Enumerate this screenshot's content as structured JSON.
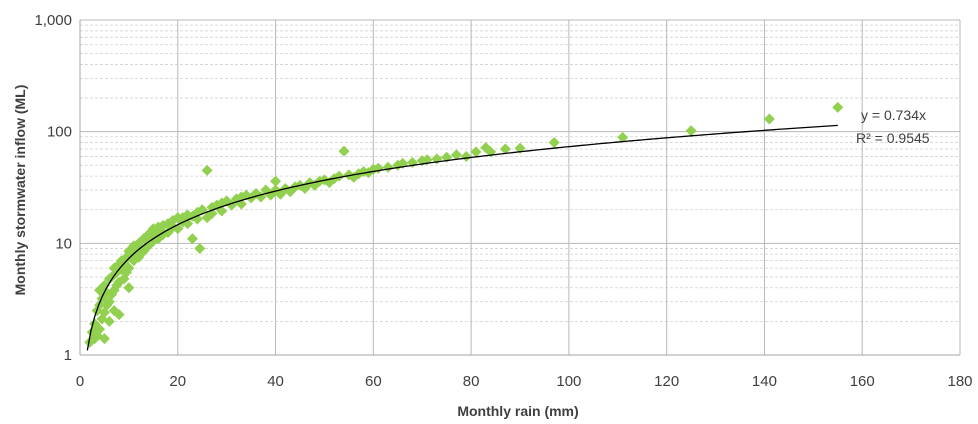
{
  "chart_data": {
    "type": "scatter",
    "xlabel": "Monthly rain (mm)",
    "ylabel": "Monthly stormwater inflow (ML)",
    "xlim": [
      0,
      180
    ],
    "ylim": [
      1,
      1000
    ],
    "y_scale": "log",
    "x_ticks": [
      "0",
      "20",
      "40",
      "60",
      "80",
      "100",
      "120",
      "140",
      "160",
      "180"
    ],
    "y_ticks": [
      "1",
      "10",
      "100",
      "1,000"
    ],
    "grid": true,
    "point_color": "#92d050",
    "trend_color": "#000000",
    "trendline": {
      "equation_line1": "y = 0.734x",
      "equation_line2": "R² = 0.9545",
      "x_range": [
        1.5,
        155
      ]
    },
    "series": [
      {
        "points": [
          [
            2,
            1.3
          ],
          [
            2.5,
            1.6
          ],
          [
            3,
            1.9
          ],
          [
            3,
            1.4
          ],
          [
            3.5,
            2.5
          ],
          [
            3.5,
            1.5
          ],
          [
            4,
            2.8
          ],
          [
            4,
            3.8
          ],
          [
            4,
            1.7
          ],
          [
            4.5,
            3.2
          ],
          [
            4.5,
            2.1
          ],
          [
            5,
            4.2
          ],
          [
            5,
            2.4
          ],
          [
            5,
            1.4
          ],
          [
            5.5,
            3.6
          ],
          [
            5.5,
            2.8
          ],
          [
            6,
            4.8
          ],
          [
            6,
            3.0
          ],
          [
            6,
            2.0
          ],
          [
            6.5,
            5.0
          ],
          [
            6.5,
            3.5
          ],
          [
            7,
            6.0
          ],
          [
            7,
            3.8
          ],
          [
            7,
            2.5
          ],
          [
            7.5,
            5.5
          ],
          [
            7.5,
            4.2
          ],
          [
            8,
            6.5
          ],
          [
            8,
            4.5
          ],
          [
            8,
            2.3
          ],
          [
            8.5,
            5.8
          ],
          [
            8.5,
            7.0
          ],
          [
            9,
            6.8
          ],
          [
            9,
            4.8
          ],
          [
            9.5,
            7.5
          ],
          [
            9.5,
            5.5
          ],
          [
            10,
            8.5
          ],
          [
            10,
            6.0
          ],
          [
            10,
            4.0
          ],
          [
            10.5,
            7.5
          ],
          [
            11,
            9.5
          ],
          [
            11,
            7.0
          ],
          [
            11.5,
            8.0
          ],
          [
            12,
            10.0
          ],
          [
            12,
            7.5
          ],
          [
            12.5,
            9.0
          ],
          [
            13,
            11.0
          ],
          [
            13,
            8.5
          ],
          [
            13.5,
            10.5
          ],
          [
            14,
            12.0
          ],
          [
            14,
            9.5
          ],
          [
            14.5,
            11.0
          ],
          [
            15,
            13.5
          ],
          [
            15,
            10.5
          ],
          [
            15.5,
            12.0
          ],
          [
            16,
            14.0
          ],
          [
            16,
            11.0
          ],
          [
            16.5,
            13.0
          ],
          [
            17,
            14.5
          ],
          [
            17,
            12.0
          ],
          [
            18,
            15.0
          ],
          [
            18,
            12.5
          ],
          [
            19,
            16.0
          ],
          [
            19,
            14.0
          ],
          [
            20,
            17.0
          ],
          [
            20,
            13.5
          ],
          [
            21,
            15.5
          ],
          [
            21,
            17.0
          ],
          [
            22,
            18.0
          ],
          [
            22,
            15.0
          ],
          [
            23,
            17.5
          ],
          [
            23,
            11.0
          ],
          [
            24,
            19.0
          ],
          [
            24,
            16.5
          ],
          [
            24.5,
            9.0
          ],
          [
            25,
            20.0
          ],
          [
            26,
            45.0
          ],
          [
            26,
            17.0
          ],
          [
            27,
            21.0
          ],
          [
            27,
            18.5
          ],
          [
            28,
            22.0
          ],
          [
            29,
            23.0
          ],
          [
            29,
            19.5
          ],
          [
            30,
            24.0
          ],
          [
            31,
            22.0
          ],
          [
            32,
            25.0
          ],
          [
            33,
            26.0
          ],
          [
            33,
            22.5
          ],
          [
            34,
            27.0
          ],
          [
            35,
            25.5
          ],
          [
            36,
            28.0
          ],
          [
            37,
            26.0
          ],
          [
            38,
            30.0
          ],
          [
            39,
            27.0
          ],
          [
            40,
            36.0
          ],
          [
            40,
            30.0
          ],
          [
            41,
            27.5
          ],
          [
            42,
            31.0
          ],
          [
            43,
            29.0
          ],
          [
            44,
            32.0
          ],
          [
            45,
            33.0
          ],
          [
            46,
            31.0
          ],
          [
            47,
            35.0
          ],
          [
            48,
            33.0
          ],
          [
            49,
            36.0
          ],
          [
            50,
            37.0
          ],
          [
            51,
            35.0
          ],
          [
            52,
            38.0
          ],
          [
            53,
            40.0
          ],
          [
            54,
            67.0
          ],
          [
            55,
            41.0
          ],
          [
            56,
            39.0
          ],
          [
            57,
            42.0
          ],
          [
            58,
            44.0
          ],
          [
            59,
            43.0
          ],
          [
            60,
            46.0
          ],
          [
            61,
            47.0
          ],
          [
            63,
            48.0
          ],
          [
            65,
            50.0
          ],
          [
            66,
            52.0
          ],
          [
            68,
            53.0
          ],
          [
            70,
            55.0
          ],
          [
            71,
            56.0
          ],
          [
            73,
            57.0
          ],
          [
            75,
            59.0
          ],
          [
            77,
            62.0
          ],
          [
            79,
            60.0
          ],
          [
            81,
            66.0
          ],
          [
            83,
            72.0
          ],
          [
            84,
            66.0
          ],
          [
            87,
            70.0
          ],
          [
            90,
            71.0
          ],
          [
            97,
            80.0
          ],
          [
            111,
            89.0
          ],
          [
            125,
            102.0
          ],
          [
            141,
            130.0
          ],
          [
            155,
            165.0
          ]
        ]
      }
    ]
  }
}
